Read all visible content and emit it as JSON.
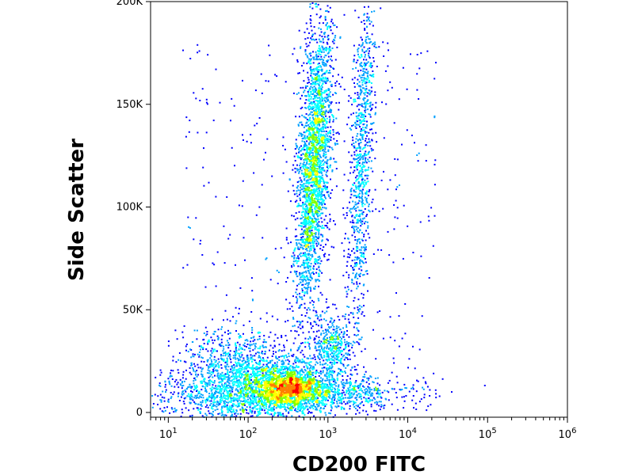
{
  "chart_data": {
    "type": "scatter",
    "subtype": "flow-cytometry-density-dot-plot",
    "title": "",
    "xlabel": "CD200 FITC",
    "ylabel": "Side Scatter",
    "x_scale": "log",
    "xlim": [
      6,
      1000000
    ],
    "ylim": [
      0,
      200000
    ],
    "x_ticks": [
      {
        "value": 10,
        "base": "10",
        "exp": "1"
      },
      {
        "value": 100,
        "base": "10",
        "exp": "2"
      },
      {
        "value": 1000,
        "base": "10",
        "exp": "3"
      },
      {
        "value": 10000,
        "base": "10",
        "exp": "4"
      },
      {
        "value": 100000,
        "base": "10",
        "exp": "5"
      },
      {
        "value": 1000000,
        "base": "10",
        "exp": "6"
      }
    ],
    "y_ticks": [
      {
        "value": 0,
        "label": "0"
      },
      {
        "value": 50000,
        "label": "50K"
      },
      {
        "value": 100000,
        "label": "100K"
      },
      {
        "value": 150000,
        "label": "150K"
      },
      {
        "value": 200000,
        "label": "200K"
      }
    ],
    "grid": false,
    "colormap": [
      "#000080",
      "#0000ff",
      "#00a0ff",
      "#00ffff",
      "#80ff00",
      "#ffff00",
      "#ff8000",
      "#ff0000"
    ],
    "populations": [
      {
        "x_center": 800,
        "y_center": 115000,
        "density": "high",
        "shape": "elongated vertical"
      },
      {
        "x_center": 400,
        "y_center": 12000,
        "density": "high",
        "shape": "compact"
      },
      {
        "x_center": 150,
        "y_center": 18000,
        "density": "medium",
        "shape": "diffuse"
      },
      {
        "x_center": 3500,
        "y_center": 110000,
        "density": "low",
        "shape": "thin vertical streak"
      },
      {
        "x_center": 1500,
        "y_center": 30000,
        "density": "low",
        "shape": "small cluster"
      }
    ]
  }
}
